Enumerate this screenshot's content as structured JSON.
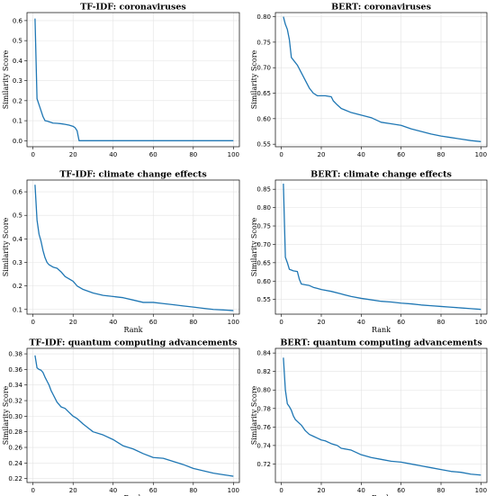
{
  "figure": {
    "line_color": "#1f77b4",
    "background": "#ffffff",
    "grid_color": "#e3e3e3"
  },
  "chart_data": [
    {
      "type": "line",
      "title": "TF-IDF: coronaviruses",
      "xlabel": "",
      "ylabel": "Similarity Score",
      "xlim": [
        -3,
        103
      ],
      "ylim": [
        -0.03,
        0.64
      ],
      "xticks": [
        0,
        20,
        40,
        60,
        80,
        100
      ],
      "yticks": [
        0.0,
        0.1,
        0.2,
        0.3,
        0.4,
        0.5,
        0.6
      ],
      "ytick_labels": [
        "0.0",
        "0.1",
        "0.2",
        "0.3",
        "0.4",
        "0.5",
        "0.6"
      ],
      "grid": true,
      "x": [
        1,
        2,
        3,
        4,
        5,
        6,
        7,
        8,
        10,
        12,
        14,
        16,
        18,
        20,
        21,
        22,
        23,
        100
      ],
      "y": [
        0.61,
        0.21,
        0.18,
        0.15,
        0.12,
        0.1,
        0.098,
        0.095,
        0.088,
        0.087,
        0.085,
        0.082,
        0.078,
        0.072,
        0.065,
        0.05,
        0.0,
        0.0
      ]
    },
    {
      "type": "line",
      "title": "BERT: coronaviruses",
      "xlabel": "",
      "ylabel": "Similarity Score",
      "xlim": [
        -3,
        103
      ],
      "ylim": [
        0.545,
        0.808
      ],
      "xticks": [
        0,
        20,
        40,
        60,
        80,
        100
      ],
      "yticks": [
        0.55,
        0.6,
        0.65,
        0.7,
        0.75,
        0.8
      ],
      "ytick_labels": [
        "0.55",
        "0.60",
        "0.65",
        "0.70",
        "0.75",
        "0.80"
      ],
      "grid": true,
      "x": [
        1,
        2,
        3,
        4,
        5,
        6,
        8,
        10,
        12,
        14,
        16,
        18,
        20,
        22,
        25,
        26,
        28,
        30,
        35,
        40,
        45,
        50,
        55,
        60,
        65,
        70,
        75,
        80,
        85,
        90,
        95,
        100
      ],
      "y": [
        0.8,
        0.785,
        0.775,
        0.755,
        0.72,
        0.715,
        0.705,
        0.69,
        0.675,
        0.66,
        0.65,
        0.645,
        0.645,
        0.645,
        0.643,
        0.635,
        0.627,
        0.62,
        0.612,
        0.607,
        0.602,
        0.593,
        0.59,
        0.587,
        0.58,
        0.575,
        0.57,
        0.566,
        0.563,
        0.56,
        0.557,
        0.555
      ]
    },
    {
      "type": "line",
      "title": "TF-IDF: climate change effects",
      "xlabel": "Rank",
      "ylabel": "Similarity Score",
      "xlim": [
        -3,
        103
      ],
      "ylim": [
        0.08,
        0.65
      ],
      "xticks": [
        0,
        20,
        40,
        60,
        80,
        100
      ],
      "yticks": [
        0.1,
        0.2,
        0.3,
        0.4,
        0.5,
        0.6
      ],
      "ytick_labels": [
        "0.1",
        "0.2",
        "0.3",
        "0.4",
        "0.5",
        "0.6"
      ],
      "grid": true,
      "x": [
        1,
        2,
        3,
        4,
        5,
        6,
        7,
        8,
        10,
        12,
        14,
        16,
        18,
        20,
        22,
        25,
        30,
        35,
        40,
        45,
        50,
        55,
        60,
        65,
        70,
        75,
        80,
        85,
        90,
        95,
        100
      ],
      "y": [
        0.63,
        0.48,
        0.42,
        0.39,
        0.35,
        0.32,
        0.3,
        0.29,
        0.28,
        0.275,
        0.26,
        0.24,
        0.23,
        0.22,
        0.2,
        0.185,
        0.17,
        0.16,
        0.155,
        0.15,
        0.14,
        0.13,
        0.13,
        0.125,
        0.12,
        0.115,
        0.11,
        0.105,
        0.1,
        0.098,
        0.095
      ]
    },
    {
      "type": "line",
      "title": "BERT: climate change effects",
      "xlabel": "Rank",
      "ylabel": "Similarity Score",
      "xlim": [
        -3,
        103
      ],
      "ylim": [
        0.51,
        0.875
      ],
      "xticks": [
        0,
        20,
        40,
        60,
        80,
        100
      ],
      "yticks": [
        0.55,
        0.6,
        0.65,
        0.7,
        0.75,
        0.8,
        0.85
      ],
      "ytick_labels": [
        "0.55",
        "0.60",
        "0.65",
        "0.70",
        "0.75",
        "0.80",
        "0.85"
      ],
      "grid": true,
      "x": [
        1,
        2,
        3,
        4,
        5,
        6,
        8,
        9,
        10,
        12,
        14,
        16,
        18,
        20,
        25,
        30,
        35,
        40,
        45,
        50,
        55,
        60,
        65,
        70,
        75,
        80,
        85,
        90,
        95,
        100
      ],
      "y": [
        0.865,
        0.665,
        0.65,
        0.632,
        0.63,
        0.628,
        0.626,
        0.605,
        0.592,
        0.59,
        0.588,
        0.583,
        0.58,
        0.577,
        0.572,
        0.565,
        0.558,
        0.553,
        0.549,
        0.545,
        0.543,
        0.54,
        0.538,
        0.535,
        0.533,
        0.531,
        0.529,
        0.527,
        0.525,
        0.523
      ]
    },
    {
      "type": "line",
      "title": "TF-IDF: quantum computing advancements",
      "xlabel": "Rank",
      "ylabel": "Similarity Score",
      "xlim": [
        -3,
        103
      ],
      "ylim": [
        0.215,
        0.387
      ],
      "xticks": [
        0,
        20,
        40,
        60,
        80,
        100
      ],
      "yticks": [
        0.22,
        0.24,
        0.26,
        0.28,
        0.3,
        0.32,
        0.34,
        0.36,
        0.38
      ],
      "ytick_labels": [
        "0.22",
        "0.24",
        "0.26",
        "0.28",
        "0.30",
        "0.32",
        "0.34",
        "0.36",
        "0.38"
      ],
      "grid": true,
      "x": [
        1,
        2,
        3,
        4,
        5,
        6,
        7,
        8,
        9,
        10,
        12,
        14,
        16,
        18,
        20,
        22,
        25,
        28,
        30,
        35,
        40,
        45,
        50,
        55,
        60,
        65,
        70,
        75,
        80,
        85,
        90,
        95,
        100
      ],
      "y": [
        0.378,
        0.362,
        0.36,
        0.359,
        0.356,
        0.35,
        0.345,
        0.34,
        0.333,
        0.328,
        0.318,
        0.312,
        0.31,
        0.305,
        0.3,
        0.297,
        0.29,
        0.284,
        0.28,
        0.276,
        0.27,
        0.262,
        0.258,
        0.252,
        0.247,
        0.246,
        0.242,
        0.238,
        0.233,
        0.23,
        0.227,
        0.225,
        0.223
      ]
    },
    {
      "type": "line",
      "title": "BERT: quantum computing advancements",
      "xlabel": "Rank",
      "ylabel": "Similarity Score",
      "xlim": [
        -3,
        103
      ],
      "ylim": [
        0.7,
        0.845
      ],
      "xticks": [
        0,
        20,
        40,
        60,
        80,
        100
      ],
      "yticks": [
        0.72,
        0.74,
        0.76,
        0.78,
        0.8,
        0.82,
        0.84
      ],
      "ytick_labels": [
        "0.72",
        "0.74",
        "0.76",
        "0.78",
        "0.80",
        "0.82",
        "0.84"
      ],
      "grid": true,
      "x": [
        1,
        2,
        3,
        4,
        5,
        6,
        7,
        8,
        10,
        12,
        14,
        16,
        18,
        20,
        22,
        25,
        28,
        30,
        35,
        40,
        45,
        50,
        55,
        60,
        65,
        70,
        75,
        80,
        85,
        90,
        95,
        100
      ],
      "y": [
        0.835,
        0.8,
        0.785,
        0.782,
        0.778,
        0.772,
        0.768,
        0.766,
        0.762,
        0.756,
        0.752,
        0.75,
        0.748,
        0.746,
        0.745,
        0.742,
        0.74,
        0.737,
        0.735,
        0.73,
        0.727,
        0.725,
        0.723,
        0.722,
        0.72,
        0.718,
        0.716,
        0.714,
        0.712,
        0.711,
        0.709,
        0.708
      ]
    }
  ]
}
